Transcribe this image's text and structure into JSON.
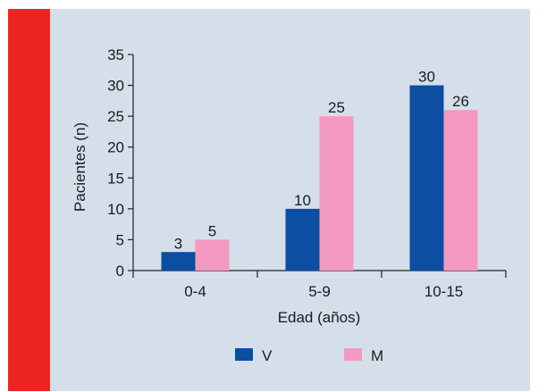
{
  "chart_data": {
    "type": "bar",
    "categories": [
      "0-4",
      "5-9",
      "10-15"
    ],
    "series": [
      {
        "name": "V",
        "values": [
          3,
          10,
          30
        ]
      },
      {
        "name": "M",
        "values": [
          5,
          25,
          26
        ]
      }
    ],
    "data_labels": [
      [
        "3",
        "10",
        "30"
      ],
      [
        "5",
        "25",
        "26"
      ]
    ],
    "xlabel": "Edad (años)",
    "ylabel": "Pacientes (n)",
    "ylim": [
      0,
      35
    ],
    "yticks": [
      0,
      5,
      10,
      15,
      20,
      25,
      30,
      35
    ],
    "grid": false,
    "legend_position": "bottom"
  },
  "colors": {
    "V": "#0b4ea2",
    "M": "#f49ac1",
    "background": "#d4dfea",
    "accent_stripe": "#ee2424"
  }
}
